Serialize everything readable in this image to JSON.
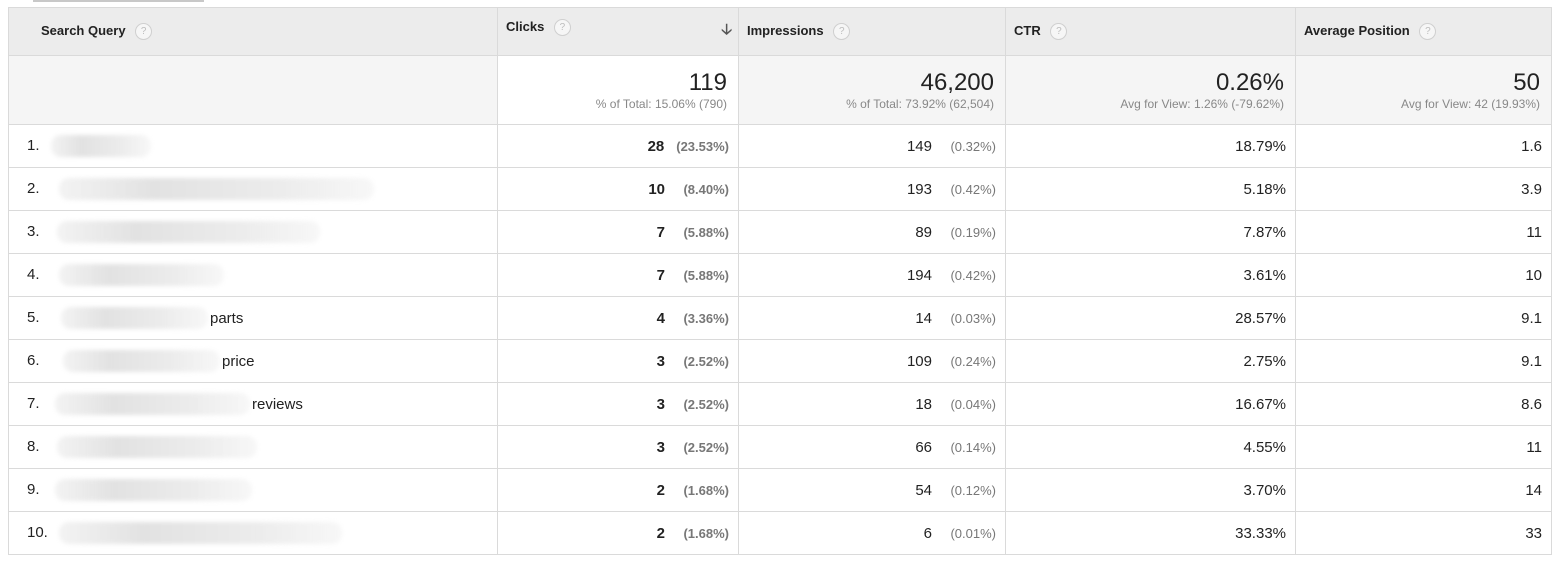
{
  "columns": {
    "query": "Search Query",
    "clicks": "Clicks",
    "impressions": "Impressions",
    "ctr": "CTR",
    "position": "Average Position"
  },
  "help_glyph": "?",
  "sort_glyph": "🡣",
  "totals": {
    "clicks": {
      "value": "119",
      "sub": "% of Total: 15.06% (790)"
    },
    "impressions": {
      "value": "46,200",
      "sub": "% of Total: 73.92% (62,504)"
    },
    "ctr": {
      "value": "0.26%",
      "sub": "Avg for View: 1.26% (-79.62%)"
    },
    "position": {
      "value": "50",
      "sub": "Avg for View: 42 (19.93%)"
    }
  },
  "rows": [
    {
      "rank": "1.",
      "suffix": "",
      "clicks": "28",
      "clicks_pct": "(23.53%)",
      "impressions": "149",
      "impressions_pct": "(0.32%)",
      "ctr": "18.79%",
      "position": "1.6"
    },
    {
      "rank": "2.",
      "suffix": "",
      "clicks": "10",
      "clicks_pct": "(8.40%)",
      "impressions": "193",
      "impressions_pct": "(0.42%)",
      "ctr": "5.18%",
      "position": "3.9"
    },
    {
      "rank": "3.",
      "suffix": "",
      "clicks": "7",
      "clicks_pct": "(5.88%)",
      "impressions": "89",
      "impressions_pct": "(0.19%)",
      "ctr": "7.87%",
      "position": "11"
    },
    {
      "rank": "4.",
      "suffix": "",
      "clicks": "7",
      "clicks_pct": "(5.88%)",
      "impressions": "194",
      "impressions_pct": "(0.42%)",
      "ctr": "3.61%",
      "position": "10"
    },
    {
      "rank": "5.",
      "suffix": "parts",
      "clicks": "4",
      "clicks_pct": "(3.36%)",
      "impressions": "14",
      "impressions_pct": "(0.03%)",
      "ctr": "28.57%",
      "position": "9.1"
    },
    {
      "rank": "6.",
      "suffix": "price",
      "clicks": "3",
      "clicks_pct": "(2.52%)",
      "impressions": "109",
      "impressions_pct": "(0.24%)",
      "ctr": "2.75%",
      "position": "9.1"
    },
    {
      "rank": "7.",
      "suffix": "reviews",
      "clicks": "3",
      "clicks_pct": "(2.52%)",
      "impressions": "18",
      "impressions_pct": "(0.04%)",
      "ctr": "16.67%",
      "position": "8.6"
    },
    {
      "rank": "8.",
      "suffix": "",
      "clicks": "3",
      "clicks_pct": "(2.52%)",
      "impressions": "66",
      "impressions_pct": "(0.14%)",
      "ctr": "4.55%",
      "position": "11"
    },
    {
      "rank": "9.",
      "suffix": "",
      "clicks": "2",
      "clicks_pct": "(1.68%)",
      "impressions": "54",
      "impressions_pct": "(0.12%)",
      "ctr": "3.70%",
      "position": "14"
    },
    {
      "rank": "10.",
      "suffix": "",
      "clicks": "2",
      "clicks_pct": "(1.68%)",
      "impressions": "6",
      "impressions_pct": "(0.01%)",
      "ctr": "33.33%",
      "position": "33"
    }
  ]
}
